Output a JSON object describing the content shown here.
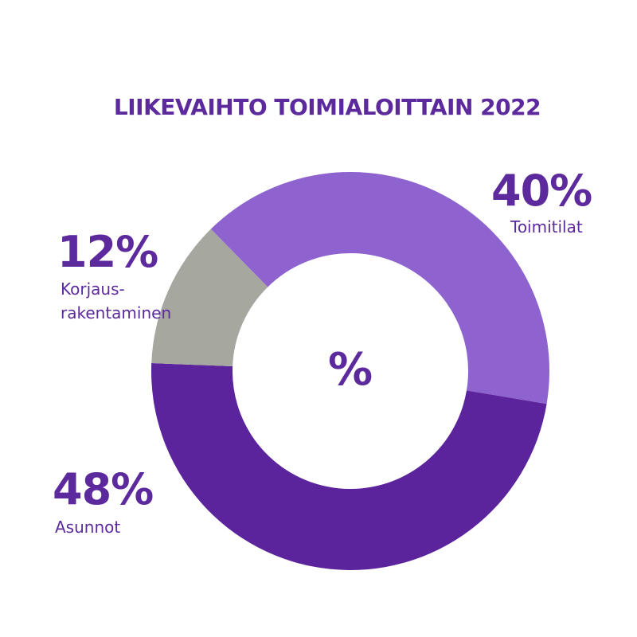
{
  "chart_data": {
    "type": "pie",
    "title": "LIIKEVAIHTO TOIMIALOITTAIN 2022",
    "center_label": "%",
    "categories": [
      "Toimitilat",
      "Asunnot",
      "Korjaus-rakentaminen"
    ],
    "values": [
      40,
      48,
      12
    ],
    "value_labels": [
      "40%",
      "48%",
      "12%"
    ],
    "label_lines": [
      [
        "Toimitilat"
      ],
      [
        "Asunnot"
      ],
      [
        "Korjaus-",
        "rakentaminen"
      ]
    ],
    "colors": [
      "#8e63cf",
      "#5c249c",
      "#a6a8a0"
    ],
    "donut": true
  }
}
